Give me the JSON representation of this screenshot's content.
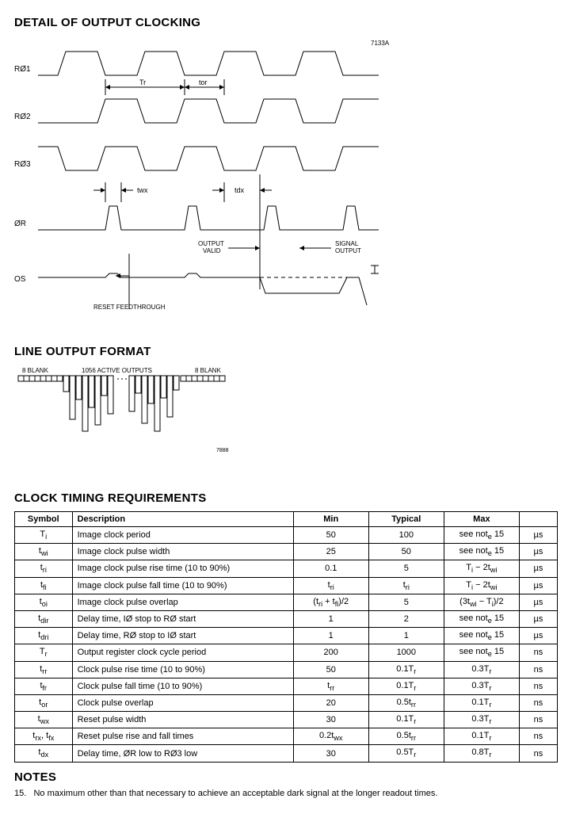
{
  "sections": {
    "detail_title": "DETAIL OF OUTPUT CLOCKING",
    "line_title": "LINE OUTPUT FORMAT",
    "timing_title": "CLOCK TIMING REQUIREMENTS",
    "notes_title": "NOTES"
  },
  "detail_diagram": {
    "fig_code": "7133A",
    "signals": [
      "RØ1",
      "RØ2",
      "RØ3",
      "ØR",
      "OS"
    ],
    "labels": {
      "tr": "Tr",
      "tor": "tor",
      "twx": "twx",
      "tdx": "tdx",
      "output_valid": "OUTPUT\nVALID",
      "signal_output": "SIGNAL\nOUTPUT",
      "reset_feedthrough": "RESET FEEDTHROUGH"
    },
    "stroke": "#000000",
    "stroke_width": 1
  },
  "line_diagram": {
    "left_label": "8 BLANK",
    "mid_label": "1056 ACTIVE OUTPUTS",
    "right_label": "8 BLANK",
    "fig_code": "7888"
  },
  "timing_table": {
    "headers": [
      "Symbol",
      "Description",
      "Min",
      "Typical",
      "Max",
      ""
    ],
    "rows": [
      [
        "Ti",
        "Image clock period",
        "50",
        "100",
        "see note 15",
        "µs"
      ],
      [
        "twi",
        "Image clock pulse width",
        "25",
        "50",
        "see note 15",
        "µs"
      ],
      [
        "tri",
        "Image clock pulse rise time (10 to 90%)",
        "0.1",
        "5",
        "Ti − 2twi",
        "µs"
      ],
      [
        "tfi",
        "Image clock pulse fall time (10 to 90%)",
        "tri",
        "tri",
        "Ti − 2twi",
        "µs"
      ],
      [
        "toi",
        "Image clock pulse overlap",
        "(tri + tfi)/2",
        "5",
        "(3twi − Ti)/2",
        "µs"
      ],
      [
        "tdir",
        "Delay time, IØ stop to RØ start",
        "1",
        "2",
        "see note 15",
        "µs"
      ],
      [
        "tdri",
        "Delay time, RØ stop to IØ start",
        "1",
        "1",
        "see note 15",
        "µs"
      ],
      [
        "Tr",
        "Output register clock cycle period",
        "200",
        "1000",
        "see note 15",
        "ns"
      ],
      [
        "trr",
        "Clock pulse rise time (10 to 90%)",
        "50",
        "0.1Tr",
        "0.3Tr",
        "ns"
      ],
      [
        "tfr",
        "Clock pulse fall time (10 to 90%)",
        "trr",
        "0.1Tr",
        "0.3Tr",
        "ns"
      ],
      [
        "tor",
        "Clock pulse overlap",
        "20",
        "0.5trr",
        "0.1Tr",
        "ns"
      ],
      [
        "twx",
        "Reset pulse width",
        "30",
        "0.1Tr",
        "0.3Tr",
        "ns"
      ],
      [
        "trx, tfx",
        "Reset pulse rise and fall times",
        "0.2twx",
        "0.5trr",
        "0.1Tr",
        "ns"
      ],
      [
        "tdx",
        "Delay time, ØR low to RØ3 low",
        "30",
        "0.5Tr",
        "0.8Tr",
        "ns"
      ]
    ]
  },
  "notes": {
    "items": [
      {
        "num": "15.",
        "text": "No maximum other than that necessary to achieve an acceptable dark signal at the longer readout times."
      }
    ]
  }
}
